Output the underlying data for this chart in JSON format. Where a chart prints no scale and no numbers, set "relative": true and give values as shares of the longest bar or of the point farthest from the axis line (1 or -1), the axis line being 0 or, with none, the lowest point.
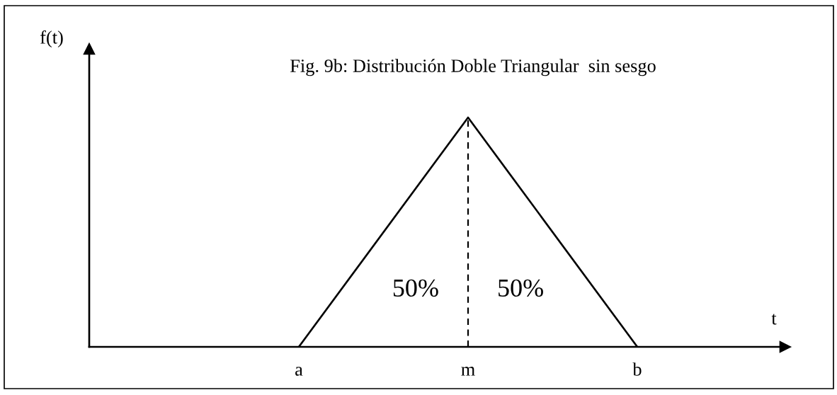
{
  "chart_data": {
    "type": "line",
    "title": "Fig. 9b: Distribución Doble Triangular  sin sesgo",
    "xlabel": "t",
    "ylabel": "f(t)",
    "categories": [
      "a",
      "m",
      "b"
    ],
    "relative": true,
    "series": [
      {
        "color": "#000000",
        "values": [
          0,
          1,
          0
        ],
        "line_style": "solid"
      }
    ],
    "ref_lines": [
      {
        "axis": "x",
        "value": "m",
        "color": "#000000",
        "line_style": "dashed"
      }
    ],
    "annotations": [
      "50%",
      "50%"
    ]
  }
}
